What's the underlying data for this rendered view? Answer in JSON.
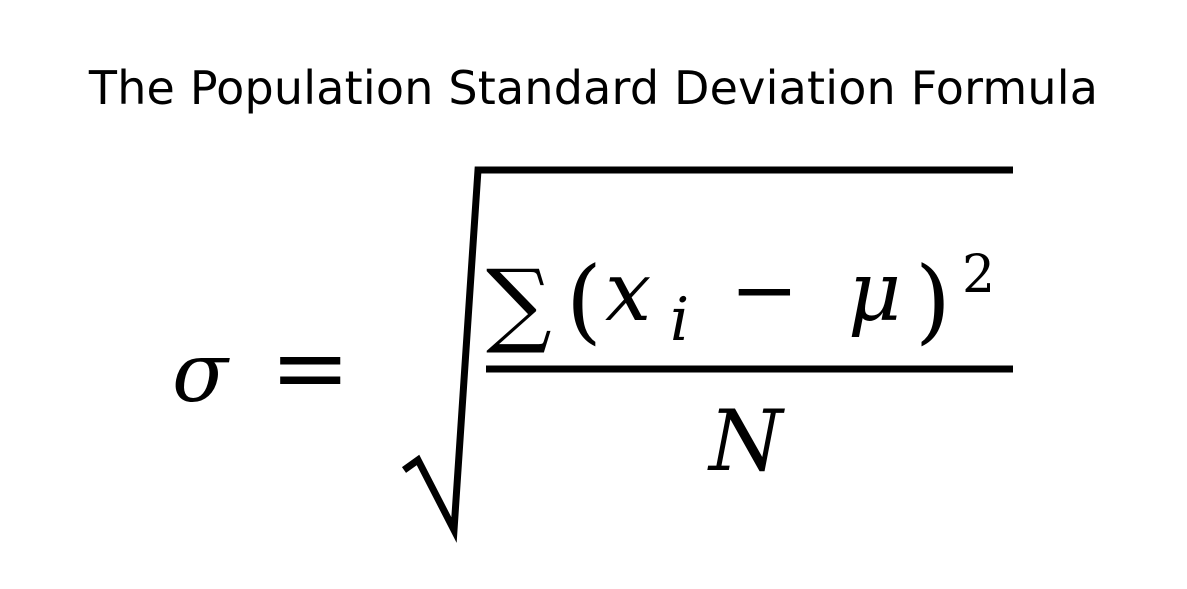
{
  "title": "The Population Standard Deviation Formula",
  "formula": {
    "lhs": "σ",
    "equals": "=",
    "sum_symbol": "∑",
    "open_paren": "(",
    "x": "x",
    "subscript_i": "i",
    "minus": "−",
    "mu": "μ",
    "close_paren": ")",
    "exponent": "2",
    "denominator": "N"
  }
}
